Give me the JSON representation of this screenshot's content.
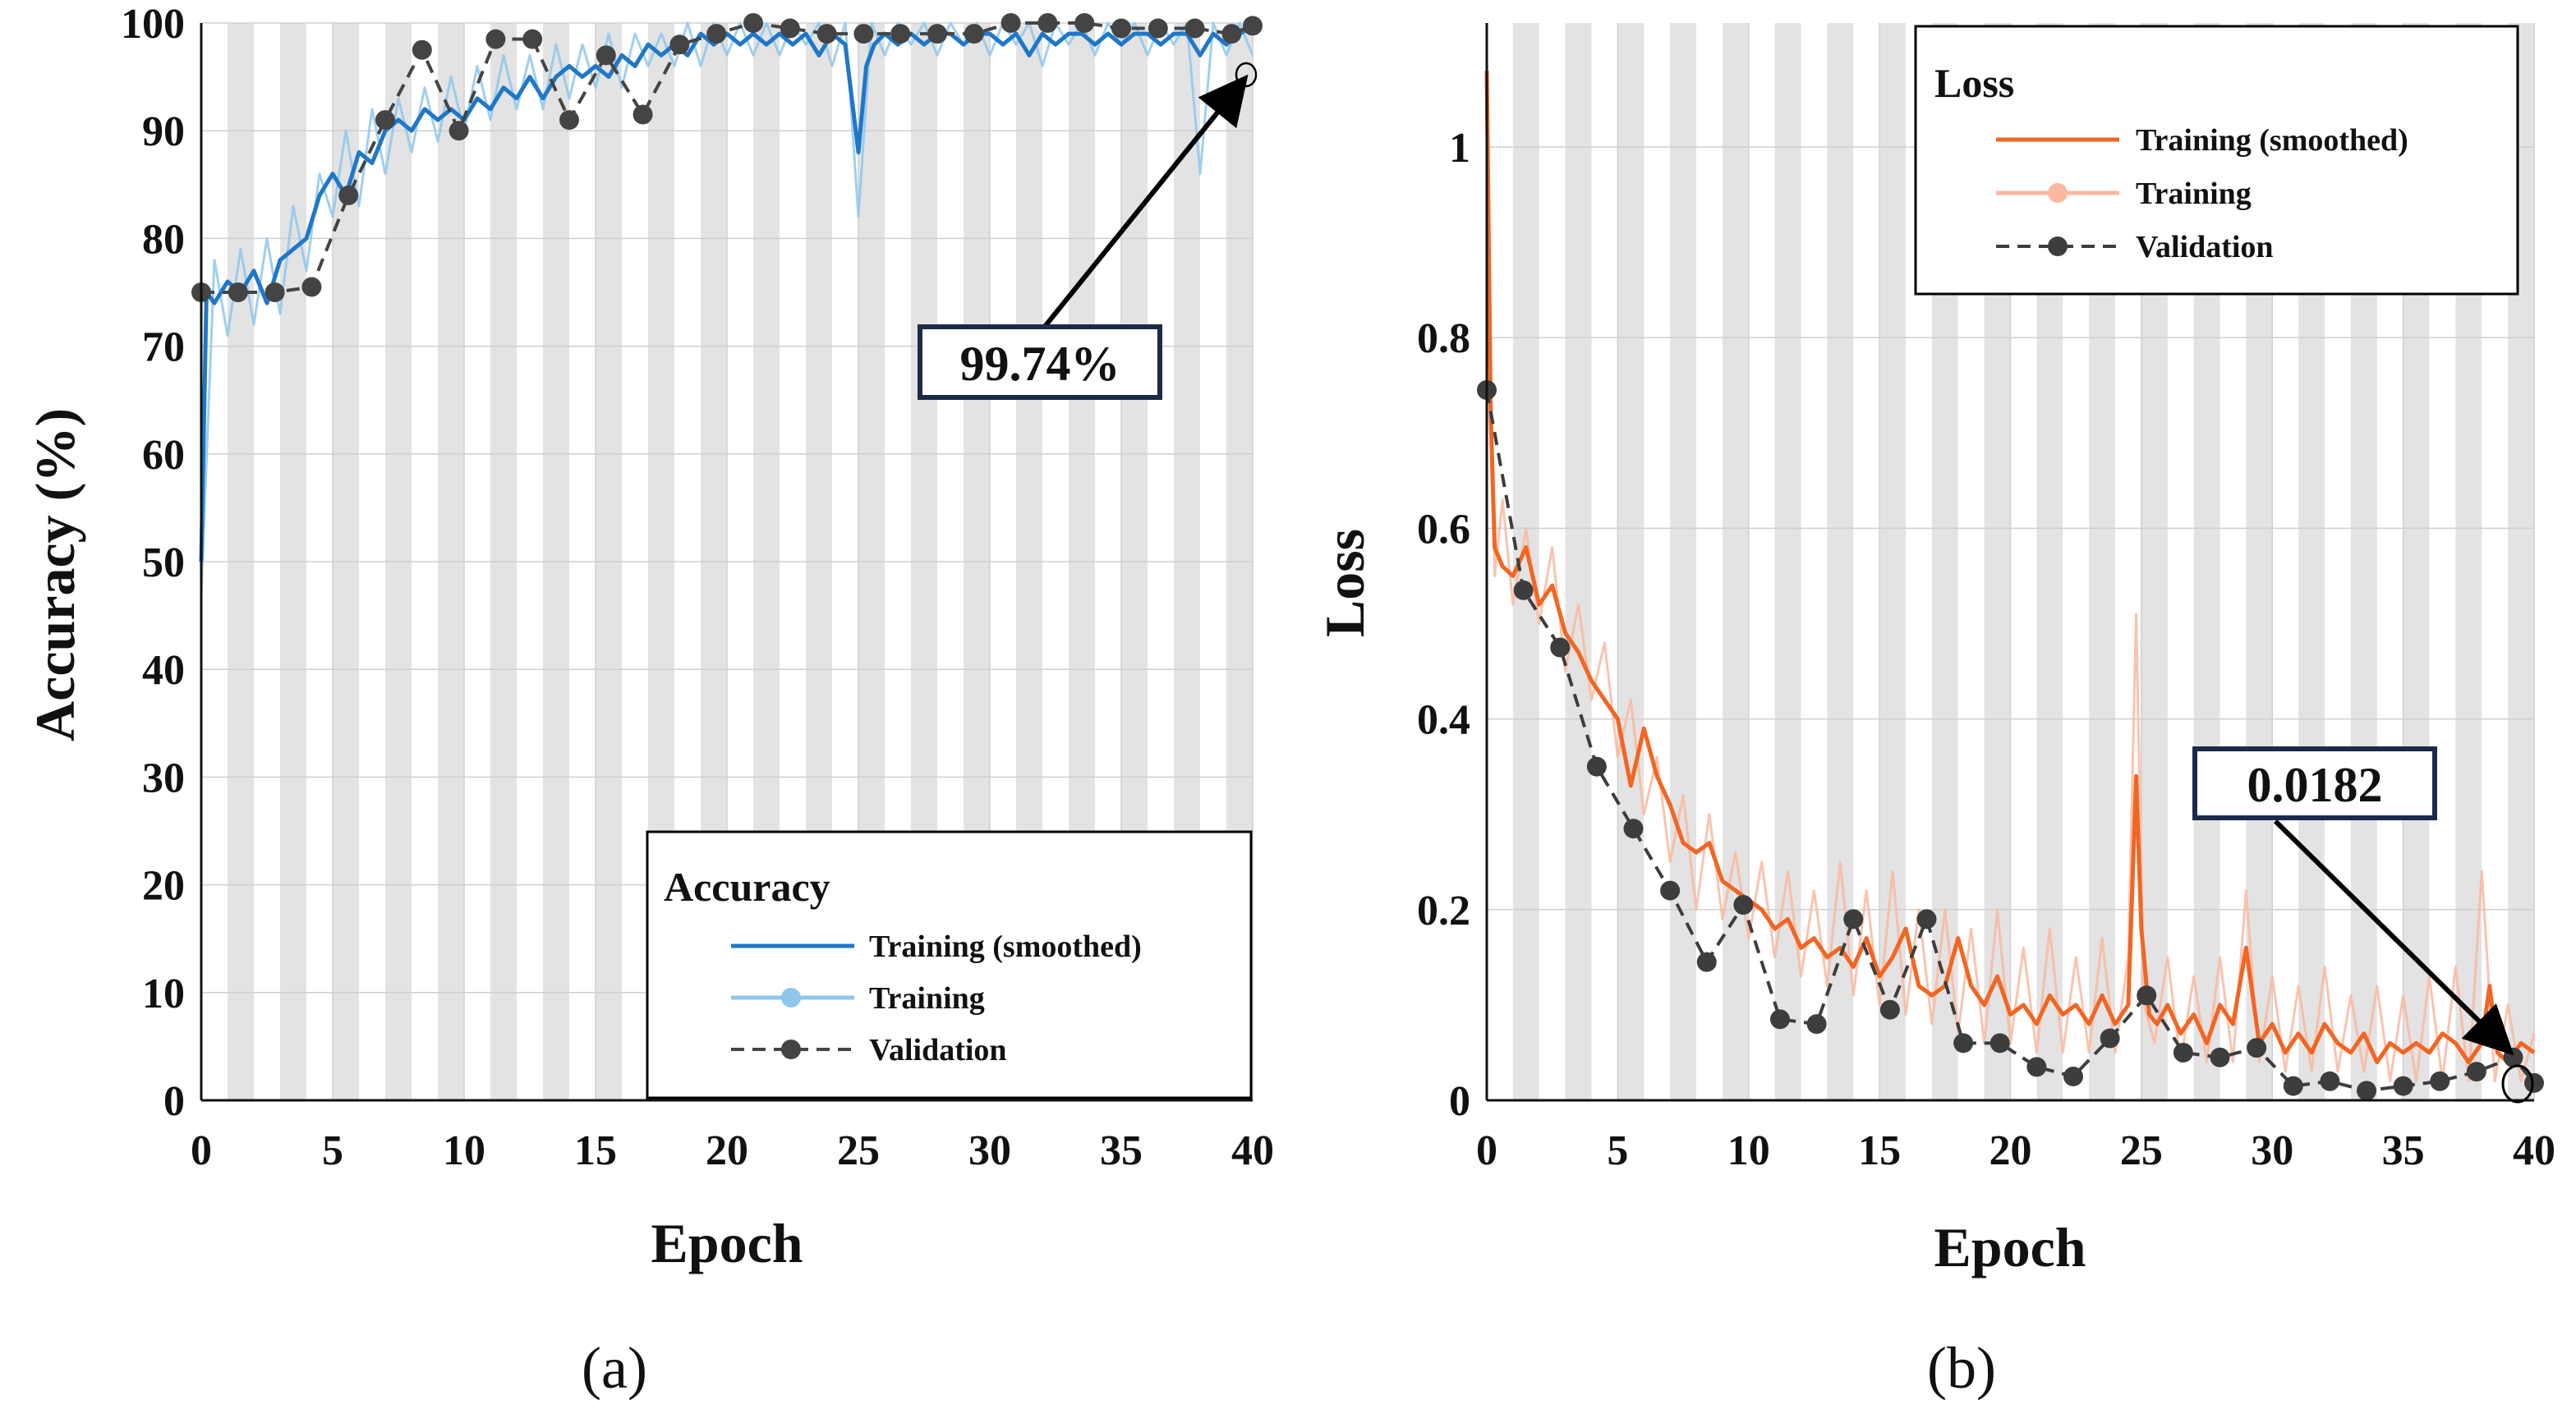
{
  "chart_data": [
    {
      "panel_label": "(a)",
      "type": "line",
      "ylabel": "Accuracy (%)",
      "xlabel": "Epoch",
      "xlim": [
        0,
        40
      ],
      "ylim": [
        0,
        100
      ],
      "xticks": [
        "0",
        "5",
        "10",
        "15",
        "20",
        "25",
        "30",
        "35",
        "40"
      ],
      "yticks": [
        "0",
        "10",
        "20",
        "30",
        "40",
        "50",
        "60",
        "70",
        "80",
        "90",
        "100"
      ],
      "epoch_bands": "alternating grey/white per epoch",
      "legend": {
        "title": "Accuracy",
        "position": "bottom-right",
        "entries": [
          "Training (smoothed)",
          "Training",
          "Validation"
        ]
      },
      "series": [
        {
          "name": "Training (smoothed)",
          "color": "#1f77c8",
          "x": [
            0,
            0.2,
            0.5,
            1,
            1.5,
            2,
            2.5,
            3,
            3.5,
            4,
            4.5,
            5,
            5.5,
            6,
            6.5,
            7,
            7.5,
            8,
            8.5,
            9,
            9.5,
            10,
            10.5,
            11,
            11.5,
            12,
            12.5,
            13,
            13.5,
            14,
            14.5,
            15,
            15.5,
            16,
            16.5,
            17,
            17.5,
            18,
            18.5,
            19,
            19.5,
            20,
            20.5,
            21,
            21.5,
            22,
            22.5,
            23,
            23.5,
            24,
            24.5,
            25,
            25.3,
            25.6,
            26,
            26.5,
            27,
            27.5,
            28,
            28.5,
            29,
            29.5,
            30,
            30.5,
            31,
            31.5,
            32,
            32.5,
            33,
            33.5,
            34,
            34.5,
            35,
            35.5,
            36,
            36.5,
            37,
            37.5,
            38,
            38.5,
            39,
            39.5,
            40
          ],
          "values": [
            50,
            75,
            74,
            76,
            75,
            77,
            74,
            78,
            79,
            80,
            84,
            86,
            84,
            88,
            87,
            90,
            91,
            90,
            92,
            91,
            92,
            91,
            93,
            92,
            94,
            93,
            95,
            93,
            95,
            96,
            95,
            96,
            95,
            97,
            96,
            98,
            97,
            98,
            97,
            99,
            98,
            99,
            98,
            99,
            98,
            99,
            98,
            99,
            97,
            99,
            98,
            88,
            96,
            98,
            99,
            98,
            99,
            98,
            99,
            99,
            98,
            99,
            99,
            98,
            99,
            97,
            99,
            98,
            99,
            99,
            98,
            99,
            98,
            99,
            99,
            98,
            99,
            99,
            97,
            99,
            98,
            99,
            99.7
          ]
        },
        {
          "name": "Training",
          "color": "#8fc7ec",
          "x": [
            0,
            0.5,
            1,
            1.5,
            2,
            2.5,
            3,
            3.5,
            4,
            4.5,
            5,
            5.5,
            6,
            6.5,
            7,
            7.5,
            8,
            8.5,
            9,
            9.5,
            10,
            10.5,
            11,
            11.5,
            12,
            12.5,
            13,
            13.5,
            14,
            14.5,
            15,
            15.5,
            16,
            16.5,
            17,
            17.5,
            18,
            18.5,
            19,
            19.5,
            20,
            20.5,
            21,
            21.5,
            22,
            22.5,
            23,
            23.5,
            24,
            24.5,
            25,
            25.5,
            26,
            26.5,
            27,
            27.5,
            28,
            28.5,
            29,
            29.5,
            30,
            30.5,
            31,
            31.5,
            32,
            32.5,
            33,
            33.5,
            34,
            34.5,
            35,
            35.5,
            36,
            36.5,
            37,
            37.5,
            38,
            38.5,
            39,
            39.5,
            40
          ],
          "values": [
            47,
            78,
            71,
            79,
            72,
            80,
            73,
            83,
            77,
            86,
            82,
            90,
            83,
            92,
            86,
            93,
            88,
            94,
            89,
            95,
            90,
            96,
            91,
            97,
            92,
            97,
            92,
            98,
            93,
            98,
            94,
            99,
            94,
            99,
            96,
            99,
            96,
            100,
            96,
            100,
            97,
            100,
            97,
            100,
            97,
            100,
            98,
            100,
            96,
            100,
            82,
            100,
            97,
            100,
            98,
            100,
            97,
            100,
            98,
            100,
            97,
            100,
            98,
            100,
            96,
            100,
            98,
            100,
            97,
            100,
            98,
            100,
            97,
            100,
            98,
            100,
            86,
            100,
            97,
            100,
            97
          ]
        },
        {
          "name": "Validation",
          "color": "#444444",
          "x": [
            0,
            1.4,
            2.8,
            4.2,
            5.6,
            7,
            8.4,
            9.8,
            11.2,
            12.6,
            14,
            15.4,
            16.8,
            18.2,
            19.6,
            21,
            22.4,
            23.8,
            25.2,
            26.6,
            28,
            29.4,
            30.8,
            32.2,
            33.6,
            35,
            36.4,
            37.8,
            39.2,
            40
          ],
          "values": [
            75,
            75,
            75,
            75.5,
            84,
            91,
            97.5,
            90,
            98.5,
            98.5,
            91,
            97,
            91.5,
            98,
            99,
            100,
            99.5,
            99,
            99,
            99,
            99,
            99,
            100,
            100,
            100,
            99.5,
            99.5,
            99.5,
            99,
            99.74
          ]
        }
      ],
      "annotation": {
        "label": "99.74%",
        "x": 40,
        "y": 99.74
      }
    },
    {
      "panel_label": "(b)",
      "type": "line",
      "ylabel": "Loss",
      "xlabel": "Epoch",
      "xlim": [
        0,
        40
      ],
      "ylim": [
        0,
        1.13
      ],
      "xticks": [
        "0",
        "5",
        "10",
        "15",
        "20",
        "25",
        "30",
        "35",
        "40"
      ],
      "yticks": [
        "0",
        "0.2",
        "0.4",
        "0.6",
        "0.8",
        "1"
      ],
      "epoch_bands": "alternating grey/white per epoch",
      "legend": {
        "title": "Loss",
        "position": "top-right",
        "entries": [
          "Training (smoothed)",
          "Training",
          "Validation"
        ]
      },
      "series": [
        {
          "name": "Training (smoothed)",
          "color": "#f26522",
          "x": [
            0,
            0.15,
            0.3,
            0.6,
            1,
            1.5,
            2,
            2.5,
            3,
            3.5,
            4,
            4.5,
            5,
            5.5,
            6,
            6.5,
            7,
            7.5,
            8,
            8.5,
            9,
            9.5,
            10,
            10.5,
            11,
            11.5,
            12,
            12.5,
            13,
            13.5,
            14,
            14.5,
            15,
            15.5,
            16,
            16.5,
            17,
            17.5,
            18,
            18.5,
            19,
            19.5,
            20,
            20.5,
            21,
            21.5,
            22,
            22.5,
            23,
            23.5,
            24,
            24.5,
            24.8,
            25,
            25.3,
            25.6,
            26,
            26.5,
            27,
            27.5,
            28,
            28.5,
            29,
            29.5,
            30,
            30.5,
            31,
            31.5,
            32,
            32.5,
            33,
            33.5,
            34,
            34.5,
            35,
            35.5,
            36,
            36.5,
            37,
            37.5,
            38,
            38.3,
            38.6,
            39,
            39.5,
            40
          ],
          "values": [
            1.08,
            0.72,
            0.58,
            0.56,
            0.55,
            0.58,
            0.52,
            0.54,
            0.49,
            0.47,
            0.44,
            0.42,
            0.4,
            0.33,
            0.39,
            0.34,
            0.31,
            0.27,
            0.26,
            0.27,
            0.23,
            0.22,
            0.21,
            0.2,
            0.18,
            0.19,
            0.16,
            0.17,
            0.15,
            0.16,
            0.14,
            0.17,
            0.13,
            0.15,
            0.18,
            0.12,
            0.11,
            0.12,
            0.17,
            0.12,
            0.1,
            0.13,
            0.09,
            0.1,
            0.08,
            0.11,
            0.09,
            0.1,
            0.08,
            0.11,
            0.08,
            0.1,
            0.34,
            0.18,
            0.09,
            0.08,
            0.1,
            0.07,
            0.09,
            0.06,
            0.1,
            0.08,
            0.16,
            0.06,
            0.08,
            0.05,
            0.07,
            0.05,
            0.08,
            0.06,
            0.05,
            0.07,
            0.04,
            0.06,
            0.05,
            0.06,
            0.05,
            0.07,
            0.06,
            0.04,
            0.06,
            0.12,
            0.05,
            0.04,
            0.06,
            0.05
          ]
        },
        {
          "name": "Training",
          "color": "#f9b8a0",
          "x": [
            0,
            0.3,
            0.6,
            1,
            1.5,
            2,
            2.5,
            3,
            3.5,
            4,
            4.5,
            5,
            5.5,
            6,
            6.5,
            7,
            7.5,
            8,
            8.5,
            9,
            9.5,
            10,
            10.5,
            11,
            11.5,
            12,
            12.5,
            13,
            13.5,
            14,
            14.5,
            15,
            15.5,
            16,
            16.5,
            17,
            17.5,
            18,
            18.5,
            19,
            19.5,
            20,
            20.5,
            21,
            21.5,
            22,
            22.5,
            23,
            23.5,
            24,
            24.5,
            24.8,
            25.1,
            25.5,
            26,
            26.5,
            27,
            27.5,
            28,
            28.5,
            29,
            29.5,
            30,
            30.5,
            31,
            31.5,
            32,
            32.5,
            33,
            33.5,
            34,
            34.5,
            35,
            35.5,
            36,
            36.5,
            37,
            37.5,
            38,
            38.5,
            39,
            39.5,
            40
          ],
          "values": [
            0.95,
            0.55,
            0.63,
            0.52,
            0.6,
            0.5,
            0.58,
            0.45,
            0.52,
            0.42,
            0.48,
            0.36,
            0.42,
            0.3,
            0.36,
            0.25,
            0.32,
            0.2,
            0.3,
            0.19,
            0.26,
            0.17,
            0.25,
            0.15,
            0.24,
            0.13,
            0.22,
            0.12,
            0.25,
            0.11,
            0.22,
            0.1,
            0.24,
            0.09,
            0.2,
            0.08,
            0.2,
            0.07,
            0.18,
            0.06,
            0.2,
            0.06,
            0.16,
            0.05,
            0.18,
            0.05,
            0.15,
            0.05,
            0.17,
            0.05,
            0.15,
            0.51,
            0.1,
            0.06,
            0.15,
            0.04,
            0.13,
            0.04,
            0.15,
            0.04,
            0.22,
            0.04,
            0.13,
            0.03,
            0.12,
            0.03,
            0.14,
            0.03,
            0.11,
            0.03,
            0.12,
            0.02,
            0.11,
            0.02,
            0.13,
            0.02,
            0.14,
            0.02,
            0.24,
            0.02,
            0.1,
            0.02,
            0.07
          ]
        },
        {
          "name": "Validation",
          "color": "#3d3d3d",
          "x": [
            0,
            1.4,
            2.8,
            4.2,
            5.6,
            7,
            8.4,
            9.8,
            11.2,
            12.6,
            14,
            15.4,
            16.8,
            18.2,
            19.6,
            21,
            22.4,
            23.8,
            25.2,
            26.6,
            28,
            29.4,
            30.8,
            32.2,
            33.6,
            35,
            36.4,
            37.8,
            39.2,
            40
          ],
          "values": [
            0.745,
            0.535,
            0.475,
            0.35,
            0.285,
            0.22,
            0.145,
            0.205,
            0.085,
            0.08,
            0.19,
            0.095,
            0.19,
            0.06,
            0.06,
            0.035,
            0.025,
            0.065,
            0.11,
            0.05,
            0.045,
            0.055,
            0.015,
            0.02,
            0.01,
            0.015,
            0.02,
            0.03,
            0.045,
            0.0182
          ]
        }
      ],
      "annotation": {
        "label": "0.0182",
        "x": 40,
        "y": 0.0182
      }
    }
  ]
}
